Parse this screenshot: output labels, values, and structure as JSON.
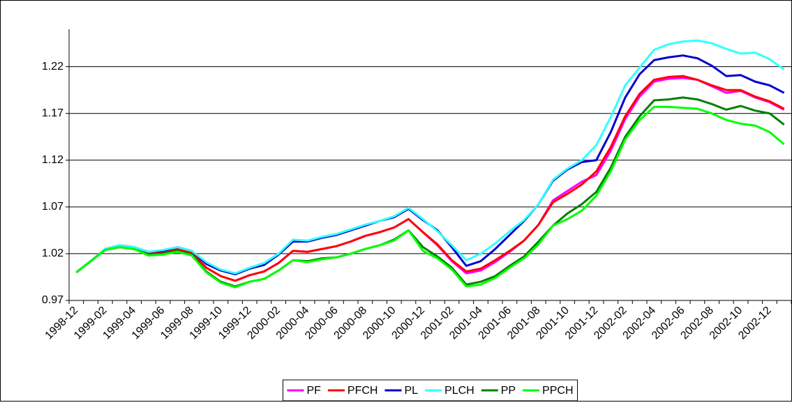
{
  "chart_data": {
    "type": "line",
    "categories": [
      "1998-12",
      null,
      "1999-02",
      null,
      "1999-04",
      null,
      "1999-06",
      null,
      "1999-08",
      null,
      "1999-10",
      null,
      "1999-12",
      null,
      "2000-02",
      null,
      "2000-04",
      null,
      "2000-06",
      null,
      "2000-08",
      null,
      "2000-10",
      null,
      "2000-12",
      null,
      "2001-02",
      null,
      "2001-04",
      null,
      "2001-06",
      null,
      "2001-08",
      null,
      "2001-10",
      null,
      "2001-12",
      null,
      "2002-02",
      null,
      "2002-04",
      null,
      "2002-06",
      null,
      "2002-08",
      null,
      "2002-10",
      null,
      "2002-12",
      null
    ],
    "series": [
      {
        "name": "PF",
        "color": "#ff00ff",
        "values": [
          1.0,
          1.012,
          1.024,
          1.027,
          1.025,
          1.02,
          1.022,
          1.025,
          1.021,
          1.005,
          0.996,
          0.991,
          0.997,
          1.001,
          1.01,
          1.023,
          1.022,
          1.025,
          1.028,
          1.033,
          1.039,
          1.043,
          1.048,
          1.057,
          1.043,
          1.029,
          1.012,
          0.999,
          1.002,
          1.011,
          1.022,
          1.034,
          1.051,
          1.077,
          1.087,
          1.097,
          1.104,
          1.13,
          1.164,
          1.188,
          1.204,
          1.207,
          1.208,
          1.206,
          1.199,
          1.192,
          1.194,
          1.187,
          1.182,
          1.174
        ]
      },
      {
        "name": "PFCH",
        "color": "#ff0000",
        "values": [
          1.0,
          1.012,
          1.024,
          1.027,
          1.025,
          1.02,
          1.022,
          1.025,
          1.021,
          1.005,
          0.996,
          0.991,
          0.997,
          1.001,
          1.01,
          1.023,
          1.022,
          1.025,
          1.028,
          1.033,
          1.039,
          1.043,
          1.048,
          1.057,
          1.043,
          1.03,
          1.013,
          1.001,
          1.004,
          1.013,
          1.023,
          1.034,
          1.051,
          1.075,
          1.084,
          1.094,
          1.108,
          1.134,
          1.167,
          1.191,
          1.206,
          1.209,
          1.21,
          1.206,
          1.2,
          1.195,
          1.195,
          1.188,
          1.183,
          1.175
        ]
      },
      {
        "name": "PL",
        "color": "#0000cc",
        "values": [
          1.0,
          1.012,
          1.025,
          1.029,
          1.027,
          1.022,
          1.023,
          1.027,
          1.023,
          1.009,
          1.002,
          0.998,
          1.004,
          1.008,
          1.019,
          1.033,
          1.033,
          1.037,
          1.04,
          1.045,
          1.05,
          1.055,
          1.059,
          1.068,
          1.056,
          1.045,
          1.027,
          1.007,
          1.012,
          1.025,
          1.04,
          1.055,
          1.073,
          1.098,
          1.11,
          1.118,
          1.12,
          1.15,
          1.187,
          1.212,
          1.227,
          1.23,
          1.232,
          1.229,
          1.221,
          1.21,
          1.211,
          1.204,
          1.2,
          1.192
        ]
      },
      {
        "name": "PLCH",
        "color": "#33ffff",
        "values": [
          1.0,
          1.012,
          1.025,
          1.029,
          1.027,
          1.022,
          1.024,
          1.027,
          1.023,
          1.011,
          1.003,
          0.999,
          1.005,
          1.01,
          1.02,
          1.035,
          1.034,
          1.038,
          1.041,
          1.046,
          1.051,
          1.055,
          1.06,
          1.069,
          1.057,
          1.044,
          1.029,
          1.013,
          1.02,
          1.031,
          1.044,
          1.056,
          1.073,
          1.099,
          1.111,
          1.12,
          1.136,
          1.166,
          1.2,
          1.219,
          1.238,
          1.244,
          1.247,
          1.248,
          1.245,
          1.239,
          1.234,
          1.235,
          1.228,
          1.217
        ]
      },
      {
        "name": "PP",
        "color": "#008000",
        "values": [
          1.0,
          1.012,
          1.024,
          1.027,
          1.025,
          1.019,
          1.02,
          1.023,
          1.019,
          1.001,
          0.99,
          0.985,
          0.99,
          0.993,
          1.002,
          1.013,
          1.012,
          1.015,
          1.016,
          1.02,
          1.025,
          1.029,
          1.035,
          1.045,
          1.027,
          1.017,
          1.005,
          0.987,
          0.99,
          0.996,
          1.007,
          1.017,
          1.033,
          1.05,
          1.063,
          1.073,
          1.086,
          1.112,
          1.145,
          1.167,
          1.184,
          1.185,
          1.187,
          1.185,
          1.18,
          1.174,
          1.178,
          1.173,
          1.17,
          1.158
        ]
      },
      {
        "name": "PPCH",
        "color": "#00ff00",
        "values": [
          1.0,
          1.012,
          1.024,
          1.027,
          1.025,
          1.018,
          1.019,
          1.022,
          1.018,
          1.0,
          0.989,
          0.984,
          0.99,
          0.993,
          1.002,
          1.013,
          1.011,
          1.014,
          1.016,
          1.02,
          1.025,
          1.029,
          1.034,
          1.045,
          1.023,
          1.015,
          1.003,
          0.985,
          0.987,
          0.994,
          1.005,
          1.015,
          1.03,
          1.05,
          1.057,
          1.066,
          1.082,
          1.108,
          1.142,
          1.163,
          1.177,
          1.177,
          1.176,
          1.175,
          1.17,
          1.163,
          1.159,
          1.157,
          1.15,
          1.137
        ]
      }
    ],
    "ylim": [
      0.97,
      1.26
    ],
    "yticks": [
      0.97,
      1.02,
      1.07,
      1.12,
      1.17,
      1.22
    ],
    "grid": true,
    "legend": "bottom"
  }
}
